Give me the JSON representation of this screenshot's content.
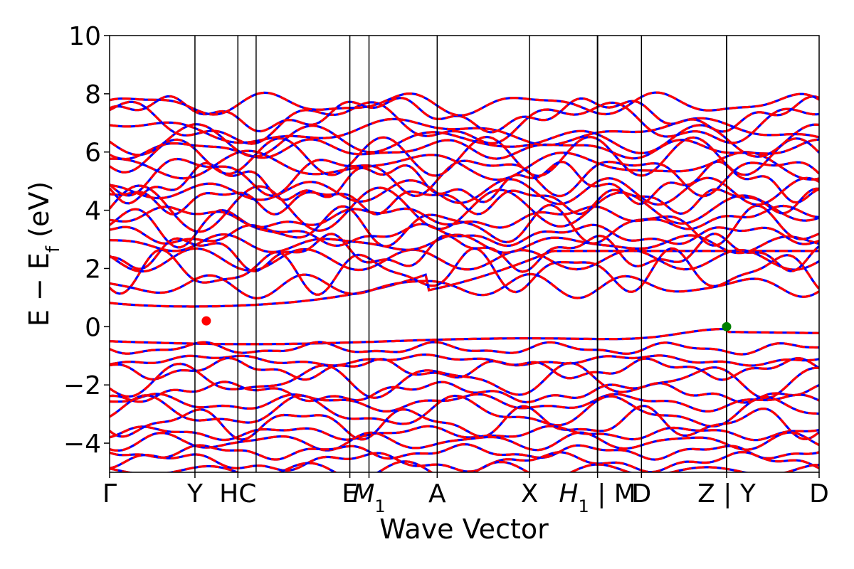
{
  "chart_data": {
    "type": "line",
    "title": "",
    "xlabel": "Wave Vector",
    "ylabel": "E − E_f (eV)",
    "ylabel_parts": {
      "main": "E − E",
      "sub": "f",
      "unit": "(eV)"
    },
    "ylim": [
      -5,
      10
    ],
    "xlim": [
      0,
      1
    ],
    "yticks": [
      "−4",
      "−2",
      "0",
      "2",
      "4",
      "6",
      "8",
      "10"
    ],
    "ytick_values": [
      -4,
      -2,
      0,
      2,
      4,
      6,
      8,
      10
    ],
    "grid": false,
    "legend": "none",
    "kpoint_labels": [
      {
        "x": 0.0,
        "label": "Γ"
      },
      {
        "x": 0.1203,
        "label": "Y"
      },
      {
        "x": 0.1808,
        "label": "HC"
      },
      {
        "x": 0.3386,
        "label": "E"
      },
      {
        "x": 0.3656,
        "label": "M",
        "sub": "1"
      },
      {
        "x": 0.4617,
        "label": "A"
      },
      {
        "x": 0.5918,
        "label": "X"
      },
      {
        "x": 0.6877,
        "label": "H",
        "sub": "1",
        "suffix": " | M"
      },
      {
        "x": 0.7496,
        "label": "D"
      },
      {
        "x": 0.8696,
        "label": "Z | Y"
      },
      {
        "x": 1.0,
        "label": "D"
      }
    ],
    "kpoint_lines": [
      0.1203,
      0.1808,
      0.2065,
      0.3386,
      0.3656,
      0.4617,
      0.5918,
      0.6877,
      0.7496,
      0.8696
    ],
    "discontinuities": [
      0.6877,
      0.8696
    ],
    "series": [
      {
        "color": "#0000ff",
        "style": "solid"
      },
      {
        "color": "#ff0000",
        "style": "dashed"
      }
    ],
    "markers": [
      {
        "x": 0.1363,
        "y": 0.2,
        "color": "#ff0000"
      },
      {
        "x": 0.8696,
        "y": 0.0,
        "color": "#008000"
      }
    ]
  }
}
